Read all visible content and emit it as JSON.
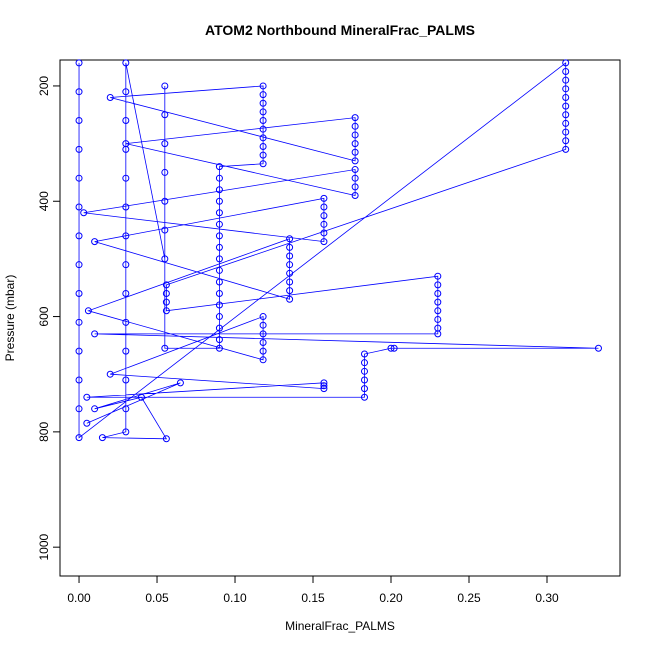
{
  "chart_data": {
    "type": "scatter",
    "title": "ATOM2 Northbound MineralFrac_PALMS",
    "x_label": "MineralFrac_PALMS",
    "y_label": "Pressure (mbar)",
    "color": "#0000ff",
    "lines": true,
    "xlim": [
      -0.0122,
      0.3468
    ],
    "ylim": [
      1050,
      155
    ],
    "xticks": [
      {
        "value": 0,
        "label": "0.00"
      },
      {
        "value": 0.05,
        "label": "0.05"
      },
      {
        "value": 0.1,
        "label": "0.10"
      },
      {
        "value": 0.15,
        "label": "0.15"
      },
      {
        "value": 0.2,
        "label": "0.20"
      },
      {
        "value": 0.25,
        "label": "0.25"
      },
      {
        "value": 0.3,
        "label": "0.30"
      }
    ],
    "yticks": [
      200,
      400,
      600,
      800,
      1000
    ],
    "x": [
      0,
      0,
      0,
      0,
      0,
      0,
      0,
      0,
      0,
      0,
      0,
      0,
      0,
      0,
      0.312,
      0.312,
      0.312,
      0.312,
      0.312,
      0.312,
      0.312,
      0.312,
      0.312,
      0.312,
      0.312,
      0.056,
      0.056,
      0.056,
      0.056,
      0.23,
      0.23,
      0.23,
      0.23,
      0.23,
      0.23,
      0.23,
      0.23,
      0.01,
      0.333,
      0.202,
      0.2,
      0.183,
      0.183,
      0.183,
      0.183,
      0.183,
      0.183,
      0.005,
      0.157,
      0.157,
      0.157,
      0.02,
      0.118,
      0.118,
      0.118,
      0.118,
      0.118,
      0.118,
      0.006,
      0.135,
      0.135,
      0.135,
      0.135,
      0.135,
      0.135,
      0.135,
      0.135,
      0.01,
      0.157,
      0.157,
      0.157,
      0.157,
      0.157,
      0.157,
      0.003,
      0.177,
      0.177,
      0.177,
      0.177,
      0.03,
      0.177,
      0.177,
      0.177,
      0.177,
      0.177,
      0.177,
      0.02,
      0.118,
      0.118,
      0.118,
      0.118,
      0.118,
      0.118,
      0.118,
      0.118,
      0.118,
      0.118,
      0.09,
      0.09,
      0.09,
      0.09,
      0.09,
      0.09,
      0.09,
      0.09,
      0.09,
      0.09,
      0.09,
      0.09,
      0.09,
      0.09,
      0.09,
      0.09,
      0.09,
      0.055,
      0.055,
      0.055,
      0.055,
      0.055,
      0.055,
      0.055,
      0.055,
      0.03,
      0.03,
      0.03,
      0.03,
      0.03,
      0.03,
      0.03,
      0.03,
      0.03,
      0.03,
      0.03,
      0.03,
      0.03,
      0.03,
      0.015,
      0.056,
      0.04,
      0.01,
      0.065,
      0.005
    ],
    "values": [
      160,
      210,
      260,
      310,
      360,
      410,
      460,
      510,
      560,
      610,
      660,
      710,
      760,
      810,
      160,
      175,
      190,
      205,
      220,
      235,
      250,
      265,
      280,
      295,
      310,
      545,
      560,
      575,
      590,
      530,
      545,
      560,
      575,
      590,
      605,
      620,
      630,
      630,
      655,
      655,
      655,
      665,
      680,
      695,
      710,
      725,
      740,
      740,
      715,
      720,
      725,
      700,
      600,
      615,
      630,
      645,
      660,
      675,
      590,
      465,
      480,
      495,
      510,
      525,
      540,
      555,
      570,
      470,
      395,
      410,
      425,
      440,
      455,
      470,
      420,
      345,
      360,
      375,
      390,
      300,
      255,
      270,
      285,
      300,
      315,
      330,
      220,
      200,
      215,
      230,
      245,
      260,
      275,
      290,
      305,
      320,
      335,
      340,
      360,
      380,
      400,
      420,
      440,
      460,
      480,
      500,
      520,
      540,
      560,
      580,
      600,
      620,
      640,
      655,
      655,
      200,
      250,
      300,
      350,
      400,
      450,
      500,
      160,
      210,
      260,
      310,
      360,
      410,
      460,
      510,
      560,
      610,
      660,
      710,
      760,
      800,
      810,
      812,
      740,
      760,
      715,
      785
    ]
  }
}
